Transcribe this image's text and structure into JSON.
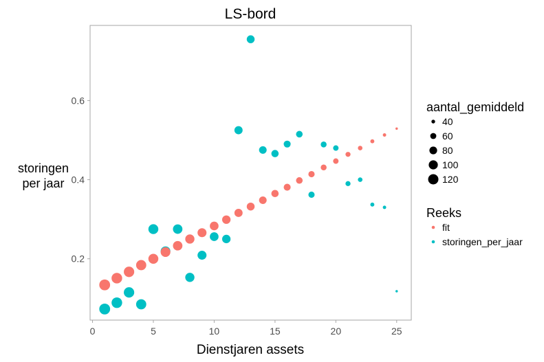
{
  "chart_data": {
    "type": "scatter",
    "title": "LS-bord",
    "xlabel": "Dienstjaren assets",
    "ylabel": [
      "storingen",
      "per jaar"
    ],
    "xlim": [
      -0.2,
      26.2
    ],
    "ylim": [
      0.045,
      0.79
    ],
    "xticks": [
      0,
      5,
      10,
      15,
      20,
      25
    ],
    "yticks": [
      0.2,
      0.4,
      0.6
    ],
    "ytick_labels": [
      "0.2",
      "0.4",
      "0.6"
    ],
    "grid": false,
    "legend_size": {
      "title": "aantal_gemiddeld",
      "values": [
        40,
        60,
        80,
        100,
        120
      ]
    },
    "legend_color": {
      "title": "Reeks"
    },
    "legend_placement": "right",
    "series": [
      {
        "name": "fit",
        "color": "#F8766D",
        "x": [
          1,
          2,
          3,
          4,
          5,
          6,
          7,
          8,
          9,
          10,
          11,
          12,
          13,
          14,
          15,
          16,
          17,
          18,
          19,
          20,
          21,
          22,
          23,
          24,
          25
        ],
        "y": [
          0.134,
          0.151,
          0.167,
          0.184,
          0.2,
          0.217,
          0.233,
          0.25,
          0.266,
          0.283,
          0.299,
          0.316,
          0.332,
          0.348,
          0.365,
          0.381,
          0.398,
          0.414,
          0.431,
          0.447,
          0.464,
          0.48,
          0.497,
          0.513,
          0.529
        ]
      },
      {
        "name": "storingen_per_jaar",
        "color": "#00BFC4",
        "x": [
          1,
          2,
          3,
          4,
          5,
          6,
          7,
          8,
          9,
          10,
          11,
          12,
          13,
          14,
          15,
          16,
          17,
          18,
          19,
          20,
          21,
          22,
          23,
          24,
          25
        ],
        "y": [
          0.073,
          0.089,
          0.115,
          0.085,
          0.275,
          0.219,
          0.275,
          0.153,
          0.209,
          0.256,
          0.25,
          0.525,
          0.755,
          0.475,
          0.466,
          0.49,
          0.515,
          0.362,
          0.489,
          0.48,
          0.39,
          0.4,
          0.337,
          0.33,
          0.118
        ]
      }
    ],
    "aantal_gemiddeld": [
      130,
      126,
      122,
      118,
      114,
      110,
      106,
      102,
      98,
      94,
      90,
      86,
      82,
      78,
      74,
      70,
      66,
      62,
      58,
      54,
      50,
      46,
      42,
      38,
      33
    ]
  }
}
